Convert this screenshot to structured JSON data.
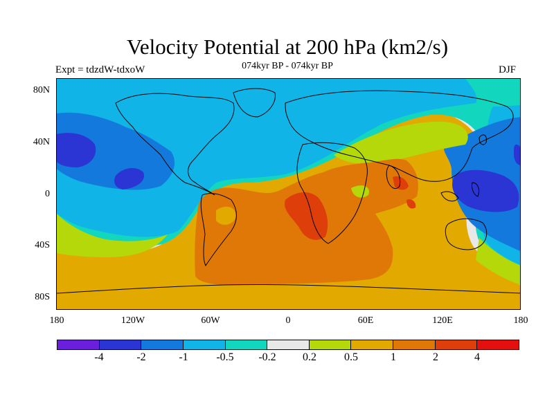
{
  "title": "Velocity Potential at 200 hPa (km2/s)",
  "subtitle": "074kyr BP - 074kyr BP",
  "left_label": "Expt = tdzdW-tdxoW",
  "right_label": "DJF",
  "y_ticks": [
    "80N",
    "40N",
    "0",
    "40S",
    "80S"
  ],
  "x_ticks": [
    "180",
    "120W",
    "60W",
    "0",
    "60E",
    "120E",
    "180"
  ],
  "legend": {
    "labels": [
      "-4",
      "-2",
      "-1",
      "-0.5",
      "-0.2",
      "0.2",
      "0.5",
      "1",
      "2",
      "4"
    ],
    "colors": [
      "#6a1fdc",
      "#2a35d4",
      "#1479dc",
      "#10b4e6",
      "#12d6be",
      "#e8e8e8",
      "#b4d80a",
      "#e2aa00",
      "#e07808",
      "#dd3e0a",
      "#e41010"
    ]
  },
  "palette": {
    "neg4": "#6a1fdc",
    "neg2": "#2a35d4",
    "neg1": "#1479dc",
    "neg05": "#10b4e6",
    "neg02": "#12d6be",
    "zero": "#e8e8e8",
    "pos02": "#b4d80a",
    "pos05": "#e2aa00",
    "pos1": "#e07808",
    "pos2": "#dd3e0a"
  }
}
